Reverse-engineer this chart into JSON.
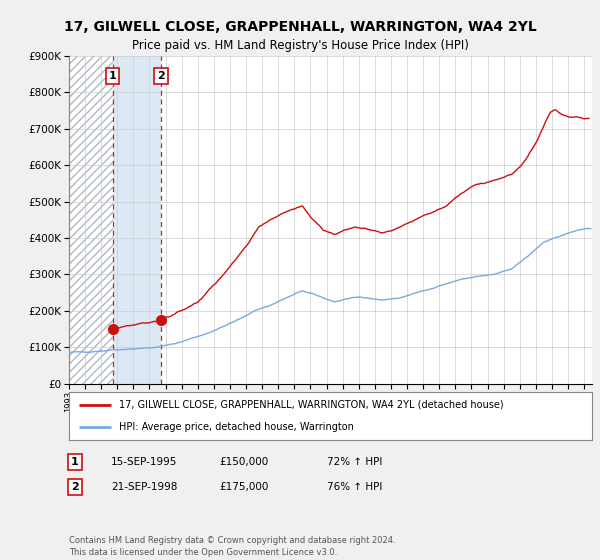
{
  "title": "17, GILWELL CLOSE, GRAPPENHALL, WARRINGTON, WA4 2YL",
  "subtitle": "Price paid vs. HM Land Registry's House Price Index (HPI)",
  "title_fontsize": 10,
  "subtitle_fontsize": 8.5,
  "ylabel_ticks": [
    "£0",
    "£100K",
    "£200K",
    "£300K",
    "£400K",
    "£500K",
    "£600K",
    "£700K",
    "£800K",
    "£900K"
  ],
  "ytick_values": [
    0,
    100000,
    200000,
    300000,
    400000,
    500000,
    600000,
    700000,
    800000,
    900000
  ],
  "ylim": [
    0,
    900000
  ],
  "xlim_start": 1993.0,
  "xlim_end": 2025.5,
  "background_color": "#f0f0f0",
  "plot_bg_color": "#ffffff",
  "hatch_color": "#b0b8c0",
  "blue_shade_color": "#dde8f5",
  "grid_color": "#cccccc",
  "sale1_date_num": 1995.708,
  "sale1_price": 150000,
  "sale1_label": "1",
  "sale2_date_num": 1998.722,
  "sale2_price": 175000,
  "sale2_label": "2",
  "vline_color": "#cc2222",
  "dot_color": "#cc1111",
  "red_line_color": "#cc1111",
  "blue_line_color": "#7aaadd",
  "legend_label_red": "17, GILWELL CLOSE, GRAPPENHALL, WARRINGTON, WA4 2YL (detached house)",
  "legend_label_blue": "HPI: Average price, detached house, Warrington",
  "table_rows": [
    {
      "num": "1",
      "date": "15-SEP-1995",
      "price": "£150,000",
      "hpi": "72% ↑ HPI"
    },
    {
      "num": "2",
      "date": "21-SEP-1998",
      "price": "£175,000",
      "hpi": "76% ↑ HPI"
    }
  ],
  "footer": "Contains HM Land Registry data © Crown copyright and database right 2024.\nThis data is licensed under the Open Government Licence v3.0."
}
